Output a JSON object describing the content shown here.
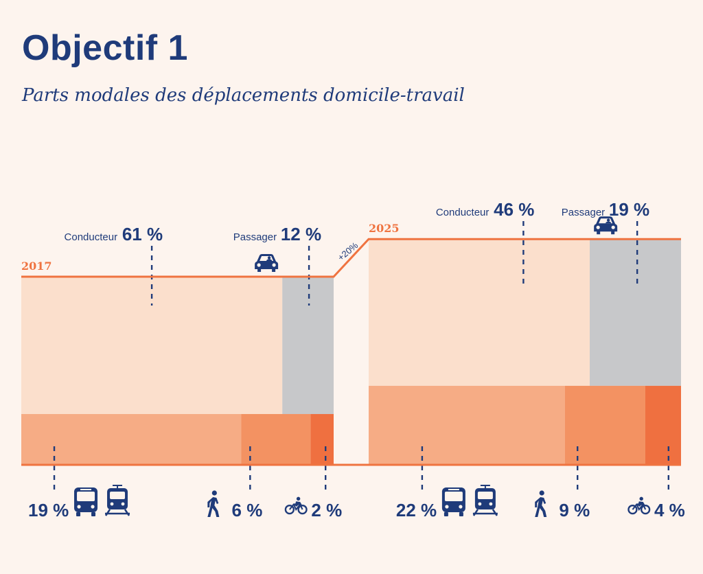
{
  "title": "Objectif 1",
  "subtitle": "Parts modales des déplacements domicile-travail",
  "colors": {
    "conducteur": "#fbdfcc",
    "passager": "#c7c8ca",
    "transport_collectif": "#f6ac85",
    "marche": "#f39262",
    "velo": "#ef7040",
    "line": "#ef7340",
    "text": "#1f3b7a",
    "background": "#fdf4ee"
  },
  "chart_data": {
    "type": "mosaic",
    "title": "Parts modales des déplacements domicile-travail",
    "unit": "%",
    "growth_label": "+20%",
    "growth_value": 20,
    "years": [
      {
        "year": "2017",
        "relative_total": 100,
        "segments": [
          {
            "key": "conducteur",
            "label": "Conducteur",
            "value": 61,
            "value_label": "61 %",
            "icon": "car-icon"
          },
          {
            "key": "passager",
            "label": "Passager",
            "value": 12,
            "value_label": "12 %",
            "icon": "car-passenger-icon"
          },
          {
            "key": "transport_collectif",
            "label": "",
            "value": 19,
            "value_label": "19 %",
            "icon": "bus-tram-icon"
          },
          {
            "key": "marche",
            "label": "",
            "value": 6,
            "value_label": "6 %",
            "icon": "walker-icon"
          },
          {
            "key": "velo",
            "label": "",
            "value": 2,
            "value_label": "2 %",
            "icon": "bicycle-icon"
          }
        ]
      },
      {
        "year": "2025",
        "relative_total": 120,
        "segments": [
          {
            "key": "conducteur",
            "label": "Conducteur",
            "value": 46,
            "value_label": "46 %",
            "icon": "car-icon"
          },
          {
            "key": "passager",
            "label": "Passager",
            "value": 19,
            "value_label": "19 %",
            "icon": "car-passenger-icon"
          },
          {
            "key": "transport_collectif",
            "label": "",
            "value": 22,
            "value_label": "22 %",
            "icon": "bus-tram-icon"
          },
          {
            "key": "marche",
            "label": "",
            "value": 9,
            "value_label": "9 %",
            "icon": "walker-icon"
          },
          {
            "key": "velo",
            "label": "",
            "value": 4,
            "value_label": "4 %",
            "icon": "bicycle-icon"
          }
        ]
      }
    ]
  }
}
